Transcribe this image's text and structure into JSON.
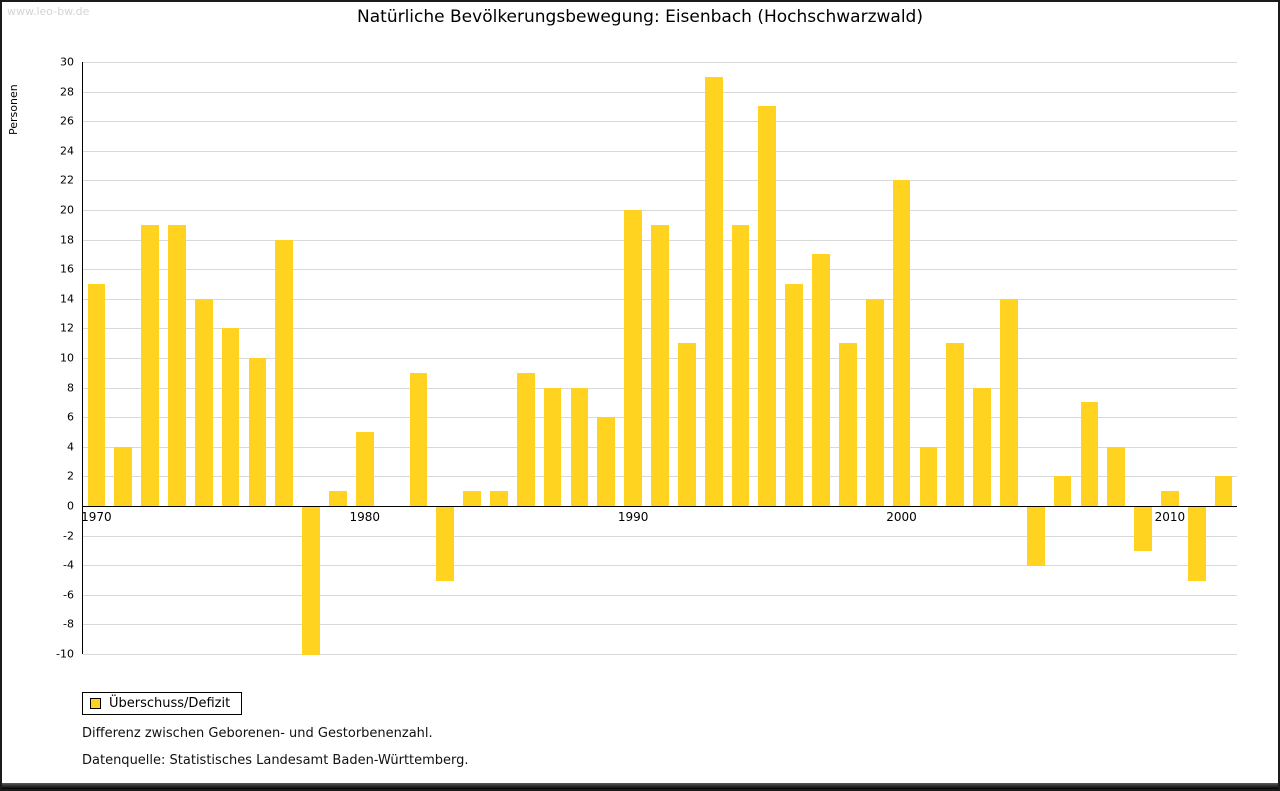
{
  "watermark": "www.leo-bw.de",
  "legend": {
    "label": "Überschuss/Defizit"
  },
  "footnotes": [
    "Differenz zwischen Geborenen- und Gestorbenenzahl.",
    "Datenquelle: Statistisches Landesamt Baden-Württemberg."
  ],
  "colors": {
    "bar": "#FFD320",
    "grid": "#D9D9D9",
    "axis": "#000000"
  },
  "chart_data": {
    "type": "bar",
    "title": "Natürliche Bevölkerungsbewegung: Eisenbach (Hochschwarzwald)",
    "ylabel": "Personen",
    "xlabel": "",
    "series_name": "Überschuss/Defizit",
    "ylim": [
      -10,
      30
    ],
    "ytick_step": 2,
    "grid": true,
    "legend_position": "bottom-left",
    "x_tick_labels": [
      "1970",
      "1980",
      "1990",
      "2000",
      "2010"
    ],
    "years": [
      1970,
      1971,
      1972,
      1973,
      1974,
      1975,
      1976,
      1977,
      1978,
      1979,
      1980,
      1981,
      1982,
      1983,
      1984,
      1985,
      1986,
      1987,
      1988,
      1989,
      1990,
      1991,
      1992,
      1993,
      1994,
      1995,
      1996,
      1997,
      1998,
      1999,
      2000,
      2001,
      2002,
      2003,
      2004,
      2005,
      2006,
      2007,
      2008,
      2009,
      2010,
      2011,
      2012
    ],
    "values": [
      15,
      4,
      19,
      19,
      14,
      12,
      10,
      18,
      -10,
      1,
      5,
      0,
      9,
      -5,
      1,
      1,
      9,
      8,
      8,
      6,
      20,
      19,
      11,
      29,
      19,
      27,
      15,
      17,
      11,
      14,
      22,
      4,
      11,
      8,
      14,
      -4,
      2,
      7,
      4,
      -3,
      1,
      -5,
      2
    ]
  }
}
